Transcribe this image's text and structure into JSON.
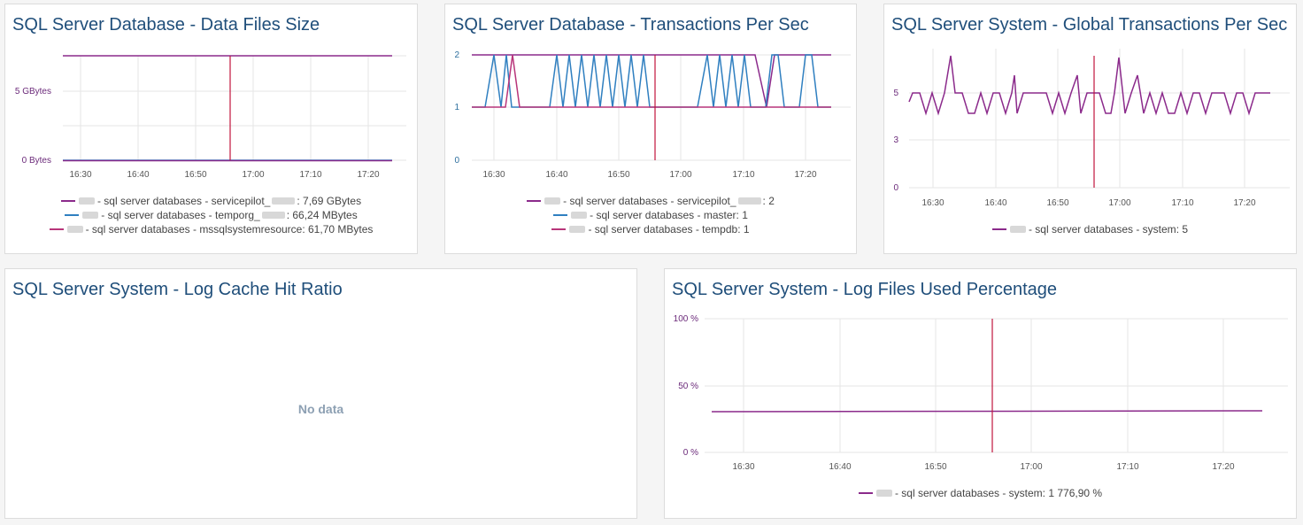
{
  "colors": {
    "purple": "#8b2a8b",
    "blue": "#2f7fc0",
    "marker": "#c0143c",
    "title": "#1f4e7a"
  },
  "panels": [
    {
      "title": "SQL Server Database - Data Files Size",
      "y_ticks": [
        "0 Bytes",
        "5 GBytes"
      ],
      "x_ticks": [
        "16:30",
        "16:40",
        "16:50",
        "17:00",
        "17:10",
        "17:20"
      ],
      "legend": [
        {
          "color": "#8b2a8b",
          "prefix": "- sql server databases - servicepilot_",
          "value": ": 7,69 GBytes"
        },
        {
          "color": "#2f7fc0",
          "prefix": "- sql server databases - temporg_",
          "value": ": 66,24 MBytes"
        },
        {
          "color": "#b8357a",
          "prefix": "- sql server databases - mssqlsystemresource",
          "value": ": 61,70 MBytes"
        }
      ]
    },
    {
      "title": "SQL Server Database - Transactions Per Sec",
      "y_ticks": [
        "0",
        "1",
        "2"
      ],
      "x_ticks": [
        "16:30",
        "16:40",
        "16:50",
        "17:00",
        "17:10",
        "17:20"
      ],
      "legend": [
        {
          "color": "#8b2a8b",
          "prefix": "- sql server databases - servicepilot_",
          "value": ": 2"
        },
        {
          "color": "#2f7fc0",
          "prefix": "- sql server databases - master",
          "value": ": 1"
        },
        {
          "color": "#b8357a",
          "prefix": "- sql server databases - tempdb",
          "value": ": 1"
        }
      ]
    },
    {
      "title": "SQL Server System - Global Transactions Per Sec",
      "y_ticks": [
        "0",
        "3",
        "5"
      ],
      "x_ticks": [
        "16:30",
        "16:40",
        "16:50",
        "17:00",
        "17:10",
        "17:20"
      ],
      "legend": [
        {
          "color": "#8b2a8b",
          "prefix": "- sql server databases - system",
          "value": ": 5"
        }
      ]
    },
    {
      "title": "SQL Server System - Log Cache Hit Ratio",
      "message": "No data"
    },
    {
      "title": "SQL Server System - Log Files Used Percentage",
      "y_ticks": [
        "0 %",
        "50 %",
        "100 %"
      ],
      "x_ticks": [
        "16:30",
        "16:40",
        "16:50",
        "17:00",
        "17:10",
        "17:20"
      ],
      "legend": [
        {
          "color": "#8b2a8b",
          "prefix": "- sql server databases - system",
          "value": ": 1 776,90 %"
        }
      ]
    }
  ]
}
